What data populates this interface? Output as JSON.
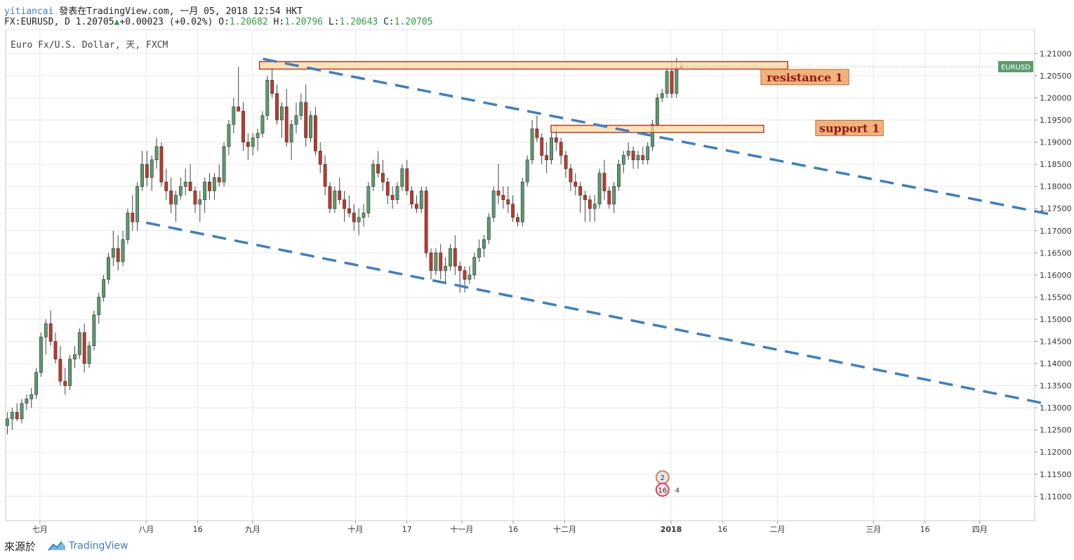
{
  "header": {
    "author": "yitiancai",
    "published": "發表在TradingView.com, 一月 05, 2018 12:54 HKT",
    "symbol": "FX:EURUSD, D",
    "last": "1.20705",
    "change": "+0.00023 (+0.02%)",
    "o_label": "O:",
    "o_value": "1.20682",
    "h_label": "H:",
    "h_value": "1.20796",
    "l_label": "L:",
    "l_value": "1.20643",
    "c_label": "C:",
    "c_value": "1.20705"
  },
  "footer": {
    "source": "來源於",
    "brand": "TradingView"
  },
  "colors": {
    "up": "#5b9b6e",
    "down": "#c0392b",
    "trend": "#3a7fc4",
    "zone_fill": "#f9dba0",
    "zone_border": "#c0392b",
    "label_bg": "#f4b27a",
    "label_text": "#8b1a1a",
    "badge_bg": "#5b9b6e",
    "grid": "#e8e8e8"
  },
  "chart_data": {
    "type": "candlestick",
    "title": "Euro Fx/U.S. Dollar, 天, FXCM",
    "symbol_badge": "EURUSD",
    "ylim": [
      1.1045,
      1.2145
    ],
    "y_ticks": [
      "1.21000",
      "1.20500",
      "1.20000",
      "1.19500",
      "1.19000",
      "1.18500",
      "1.18000",
      "1.17500",
      "1.17000",
      "1.16500",
      "1.16000",
      "1.15500",
      "1.15000",
      "1.14500",
      "1.14000",
      "1.13500",
      "1.13000",
      "1.12500",
      "1.12000",
      "1.11500",
      "1.11000"
    ],
    "x_range_days": [
      0,
      270
    ],
    "x_ticks": [
      {
        "label": "七月",
        "day": 10
      },
      {
        "label": "八月",
        "day": 41
      },
      {
        "label": "16",
        "day": 56
      },
      {
        "label": "九月",
        "day": 72
      },
      {
        "label": "十月",
        "day": 102
      },
      {
        "label": "17",
        "day": 117
      },
      {
        "label": "十一月",
        "day": 133
      },
      {
        "label": "16",
        "day": 148
      },
      {
        "label": "十二月",
        "day": 163
      },
      {
        "label": "2018",
        "day": 194
      },
      {
        "label": "16",
        "day": 209
      },
      {
        "label": "二月",
        "day": 225
      },
      {
        "label": "三月",
        "day": 253
      },
      {
        "label": "16",
        "day": 268
      },
      {
        "label": "四月",
        "day": 284
      }
    ],
    "candles": [
      [
        1.126,
        1.129,
        1.124,
        1.1275
      ],
      [
        1.1275,
        1.13,
        1.125,
        1.129
      ],
      [
        1.129,
        1.131,
        1.127,
        1.1275
      ],
      [
        1.1275,
        1.132,
        1.1265,
        1.131
      ],
      [
        1.131,
        1.133,
        1.1295,
        1.132
      ],
      [
        1.132,
        1.1345,
        1.13,
        1.133
      ],
      [
        1.133,
        1.139,
        1.132,
        1.138
      ],
      [
        1.138,
        1.147,
        1.137,
        1.146
      ],
      [
        1.146,
        1.15,
        1.142,
        1.149
      ],
      [
        1.149,
        1.152,
        1.144,
        1.145
      ],
      [
        1.145,
        1.147,
        1.14,
        1.141
      ],
      [
        1.141,
        1.144,
        1.135,
        1.136
      ],
      [
        1.136,
        1.139,
        1.133,
        1.135
      ],
      [
        1.135,
        1.142,
        1.134,
        1.141
      ],
      [
        1.141,
        1.144,
        1.139,
        1.142
      ],
      [
        1.142,
        1.148,
        1.141,
        1.147
      ],
      [
        1.147,
        1.149,
        1.138,
        1.14
      ],
      [
        1.14,
        1.145,
        1.139,
        1.144
      ],
      [
        1.144,
        1.152,
        1.143,
        1.151
      ],
      [
        1.151,
        1.156,
        1.149,
        1.155
      ],
      [
        1.155,
        1.16,
        1.154,
        1.159
      ],
      [
        1.159,
        1.165,
        1.158,
        1.164
      ],
      [
        1.164,
        1.17,
        1.162,
        1.166
      ],
      [
        1.166,
        1.169,
        1.161,
        1.163
      ],
      [
        1.163,
        1.17,
        1.162,
        1.168
      ],
      [
        1.168,
        1.175,
        1.167,
        1.174
      ],
      [
        1.174,
        1.178,
        1.17,
        1.172
      ],
      [
        1.172,
        1.181,
        1.17,
        1.18
      ],
      [
        1.18,
        1.188,
        1.179,
        1.185
      ],
      [
        1.185,
        1.188,
        1.18,
        1.182
      ],
      [
        1.182,
        1.187,
        1.179,
        1.186
      ],
      [
        1.186,
        1.191,
        1.184,
        1.189
      ],
      [
        1.189,
        1.19,
        1.18,
        1.181
      ],
      [
        1.181,
        1.184,
        1.177,
        1.179
      ],
      [
        1.179,
        1.182,
        1.174,
        1.176
      ],
      [
        1.176,
        1.179,
        1.172,
        1.178
      ],
      [
        1.178,
        1.182,
        1.177,
        1.18
      ],
      [
        1.18,
        1.184,
        1.178,
        1.181
      ],
      [
        1.181,
        1.185,
        1.179,
        1.179
      ],
      [
        1.179,
        1.18,
        1.174,
        1.176
      ],
      [
        1.176,
        1.179,
        1.172,
        1.177
      ],
      [
        1.177,
        1.182,
        1.174,
        1.181
      ],
      [
        1.181,
        1.183,
        1.177,
        1.179
      ],
      [
        1.179,
        1.183,
        1.177,
        1.182
      ],
      [
        1.182,
        1.185,
        1.18,
        1.181
      ],
      [
        1.181,
        1.19,
        1.18,
        1.189
      ],
      [
        1.189,
        1.195,
        1.187,
        1.194
      ],
      [
        1.194,
        1.2,
        1.192,
        1.198
      ],
      [
        1.198,
        1.207,
        1.197,
        1.197
      ],
      [
        1.197,
        1.199,
        1.188,
        1.19
      ],
      [
        1.19,
        1.192,
        1.186,
        1.189
      ],
      [
        1.189,
        1.192,
        1.187,
        1.191
      ],
      [
        1.191,
        1.193,
        1.188,
        1.192
      ],
      [
        1.192,
        1.197,
        1.191,
        1.196
      ],
      [
        1.196,
        1.205,
        1.195,
        1.204
      ],
      [
        1.204,
        1.207,
        1.2,
        1.201
      ],
      [
        1.201,
        1.203,
        1.194,
        1.195
      ],
      [
        1.195,
        1.199,
        1.191,
        1.198
      ],
      [
        1.198,
        1.202,
        1.189,
        1.19
      ],
      [
        1.19,
        1.195,
        1.186,
        1.194
      ],
      [
        1.194,
        1.199,
        1.192,
        1.196
      ],
      [
        1.196,
        1.201,
        1.195,
        1.199
      ],
      [
        1.199,
        1.203,
        1.189,
        1.191
      ],
      [
        1.191,
        1.197,
        1.19,
        1.196
      ],
      [
        1.196,
        1.198,
        1.187,
        1.188
      ],
      [
        1.188,
        1.19,
        1.183,
        1.185
      ],
      [
        1.185,
        1.187,
        1.178,
        1.18
      ],
      [
        1.18,
        1.181,
        1.174,
        1.175
      ],
      [
        1.175,
        1.18,
        1.174,
        1.179
      ],
      [
        1.179,
        1.182,
        1.176,
        1.177
      ],
      [
        1.177,
        1.179,
        1.172,
        1.175
      ],
      [
        1.175,
        1.178,
        1.173,
        1.174
      ],
      [
        1.174,
        1.176,
        1.17,
        1.172
      ],
      [
        1.172,
        1.175,
        1.169,
        1.173
      ],
      [
        1.173,
        1.176,
        1.171,
        1.174
      ],
      [
        1.174,
        1.181,
        1.173,
        1.18
      ],
      [
        1.18,
        1.186,
        1.179,
        1.185
      ],
      [
        1.185,
        1.188,
        1.182,
        1.183
      ],
      [
        1.183,
        1.186,
        1.179,
        1.181
      ],
      [
        1.181,
        1.182,
        1.176,
        1.178
      ],
      [
        1.178,
        1.18,
        1.175,
        1.177
      ],
      [
        1.177,
        1.181,
        1.176,
        1.18
      ],
      [
        1.18,
        1.185,
        1.179,
        1.184
      ],
      [
        1.184,
        1.186,
        1.178,
        1.179
      ],
      [
        1.179,
        1.18,
        1.175,
        1.176
      ],
      [
        1.176,
        1.178,
        1.174,
        1.175
      ],
      [
        1.175,
        1.18,
        1.174,
        1.179
      ],
      [
        1.179,
        1.18,
        1.164,
        1.165
      ],
      [
        1.165,
        1.166,
        1.159,
        1.161
      ],
      [
        1.161,
        1.166,
        1.16,
        1.165
      ],
      [
        1.165,
        1.167,
        1.159,
        1.161
      ],
      [
        1.161,
        1.164,
        1.158,
        1.162
      ],
      [
        1.162,
        1.167,
        1.161,
        1.166
      ],
      [
        1.166,
        1.169,
        1.16,
        1.162
      ],
      [
        1.162,
        1.163,
        1.156,
        1.161
      ],
      [
        1.161,
        1.162,
        1.156,
        1.159
      ],
      [
        1.159,
        1.162,
        1.158,
        1.16
      ],
      [
        1.16,
        1.165,
        1.159,
        1.164
      ],
      [
        1.164,
        1.168,
        1.163,
        1.166
      ],
      [
        1.166,
        1.169,
        1.164,
        1.168
      ],
      [
        1.168,
        1.174,
        1.167,
        1.173
      ],
      [
        1.173,
        1.18,
        1.172,
        1.179
      ],
      [
        1.179,
        1.185,
        1.176,
        1.178
      ],
      [
        1.178,
        1.18,
        1.175,
        1.177
      ],
      [
        1.177,
        1.18,
        1.174,
        1.176
      ],
      [
        1.176,
        1.178,
        1.172,
        1.173
      ],
      [
        1.173,
        1.174,
        1.171,
        1.172
      ],
      [
        1.172,
        1.182,
        1.171,
        1.181
      ],
      [
        1.181,
        1.187,
        1.18,
        1.186
      ],
      [
        1.186,
        1.195,
        1.185,
        1.193
      ],
      [
        1.193,
        1.196,
        1.19,
        1.191
      ],
      [
        1.191,
        1.192,
        1.185,
        1.187
      ],
      [
        1.187,
        1.19,
        1.183,
        1.186
      ],
      [
        1.186,
        1.192,
        1.185,
        1.191
      ],
      [
        1.191,
        1.194,
        1.188,
        1.19
      ],
      [
        1.19,
        1.191,
        1.185,
        1.187
      ],
      [
        1.187,
        1.188,
        1.182,
        1.184
      ],
      [
        1.184,
        1.185,
        1.179,
        1.181
      ],
      [
        1.181,
        1.183,
        1.178,
        1.18
      ],
      [
        1.18,
        1.181,
        1.174,
        1.178
      ],
      [
        1.178,
        1.179,
        1.172,
        1.177
      ],
      [
        1.177,
        1.178,
        1.172,
        1.175
      ],
      [
        1.175,
        1.178,
        1.172,
        1.176
      ],
      [
        1.176,
        1.184,
        1.175,
        1.183
      ],
      [
        1.183,
        1.186,
        1.177,
        1.179
      ],
      [
        1.179,
        1.18,
        1.175,
        1.176
      ],
      [
        1.176,
        1.181,
        1.174,
        1.18
      ],
      [
        1.18,
        1.186,
        1.179,
        1.185
      ],
      [
        1.185,
        1.188,
        1.183,
        1.187
      ],
      [
        1.187,
        1.19,
        1.186,
        1.188
      ],
      [
        1.188,
        1.189,
        1.184,
        1.186
      ],
      [
        1.186,
        1.188,
        1.184,
        1.187
      ],
      [
        1.187,
        1.189,
        1.185,
        1.186
      ],
      [
        1.186,
        1.19,
        1.185,
        1.189
      ],
      [
        1.189,
        1.195,
        1.188,
        1.194
      ],
      [
        1.194,
        1.201,
        1.193,
        1.2
      ],
      [
        1.2,
        1.202,
        1.199,
        1.201
      ],
      [
        1.201,
        1.207,
        1.2,
        1.206
      ],
      [
        1.206,
        1.208,
        1.2,
        1.201
      ],
      [
        1.201,
        1.209,
        1.2,
        1.2068
      ],
      [
        1.2068,
        1.20796,
        1.20643,
        1.20705
      ]
    ],
    "zones": [
      {
        "name": "resistance",
        "y1": 1.2082,
        "y2": 1.2065,
        "x1_day": 74,
        "x2_day": 228
      },
      {
        "name": "support",
        "y1": 1.1938,
        "y2": 1.1922,
        "x1_day": 159,
        "x2_day": 221
      }
    ],
    "labels": [
      {
        "text": "resistance 1",
        "day": 233,
        "y": 1.2047
      },
      {
        "text": "support 1",
        "day": 246,
        "y": 1.1932
      }
    ],
    "trendlines": [
      {
        "from": {
          "day": 75,
          "y": 1.2088
        },
        "to": {
          "day": 304,
          "y": 1.1738
        }
      },
      {
        "from": {
          "day": 41,
          "y": 1.1718
        },
        "to": {
          "day": 304,
          "y": 1.1308
        }
      }
    ],
    "current_price": 1.20705,
    "indicator_badges": [
      "2",
      "16",
      "4"
    ]
  }
}
